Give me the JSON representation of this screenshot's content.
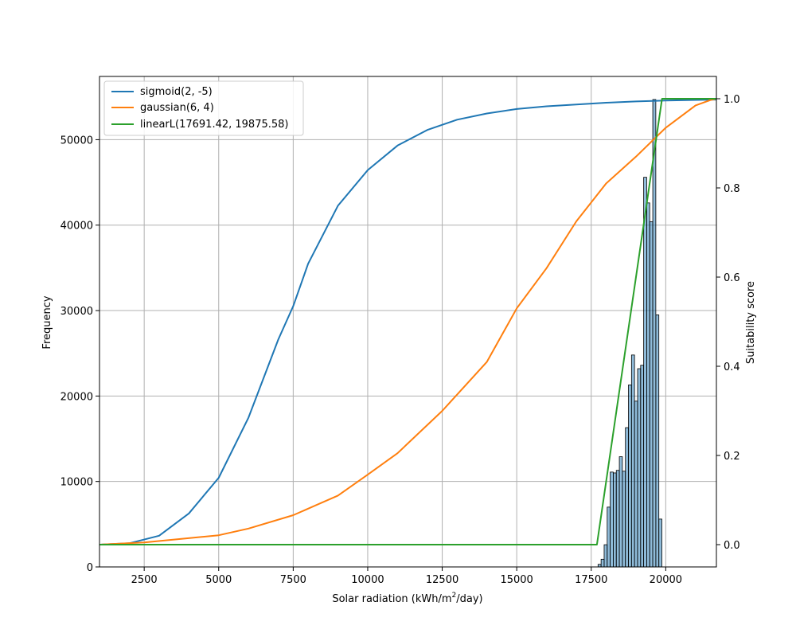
{
  "chart_data": {
    "type": "bar+line",
    "title": "",
    "xlabel": "Solar radiation (kWh/m",
    "xlabel_sup": "2",
    "xlabel_suffix": "/day)",
    "ylabel_left": "Frequency",
    "ylabel_right": "Suitability score",
    "xlim": [
      1000,
      21700
    ],
    "ylim_left": [
      0,
      57400
    ],
    "ylim_right": [
      -0.05,
      1.05
    ],
    "xticks": [
      2500,
      5000,
      7500,
      10000,
      12500,
      15000,
      17500,
      20000
    ],
    "yticks_left": [
      0,
      10000,
      20000,
      30000,
      40000,
      50000
    ],
    "yticks_right": [
      0.0,
      0.2,
      0.4,
      0.6,
      0.8,
      1.0
    ],
    "grid": true,
    "legend_position": "top-left",
    "histogram": {
      "bin_width": 102,
      "bins": [
        {
          "x": 17780,
          "count": 300
        },
        {
          "x": 17882,
          "count": 900
        },
        {
          "x": 17984,
          "count": 2600
        },
        {
          "x": 18086,
          "count": 7000
        },
        {
          "x": 18188,
          "count": 11100
        },
        {
          "x": 18290,
          "count": 11000
        },
        {
          "x": 18392,
          "count": 11300
        },
        {
          "x": 18494,
          "count": 12900
        },
        {
          "x": 18596,
          "count": 11200
        },
        {
          "x": 18698,
          "count": 16300
        },
        {
          "x": 18800,
          "count": 21300
        },
        {
          "x": 18902,
          "count": 24800
        },
        {
          "x": 19004,
          "count": 19400
        },
        {
          "x": 19106,
          "count": 23200
        },
        {
          "x": 19208,
          "count": 23600
        },
        {
          "x": 19310,
          "count": 45600
        },
        {
          "x": 19412,
          "count": 42600
        },
        {
          "x": 19514,
          "count": 40400
        },
        {
          "x": 19616,
          "count": 54700
        },
        {
          "x": 19718,
          "count": 29500
        },
        {
          "x": 19820,
          "count": 5600
        }
      ]
    },
    "series": [
      {
        "name": "sigmoid(2, -5)",
        "color": "#1f77b4",
        "axis": "right",
        "points": [
          [
            1000,
            0.0
          ],
          [
            2000,
            0.003
          ],
          [
            3000,
            0.02
          ],
          [
            4000,
            0.07
          ],
          [
            5000,
            0.15
          ],
          [
            6000,
            0.285
          ],
          [
            7000,
            0.46
          ],
          [
            7500,
            0.535
          ],
          [
            8000,
            0.63
          ],
          [
            9000,
            0.76
          ],
          [
            10000,
            0.84
          ],
          [
            11000,
            0.895
          ],
          [
            12000,
            0.93
          ],
          [
            13000,
            0.953
          ],
          [
            14000,
            0.967
          ],
          [
            15000,
            0.977
          ],
          [
            16000,
            0.983
          ],
          [
            17000,
            0.987
          ],
          [
            18000,
            0.991
          ],
          [
            19000,
            0.994
          ],
          [
            20000,
            0.996
          ],
          [
            21700,
            0.998
          ]
        ]
      },
      {
        "name": "gaussian(6, 4)",
        "color": "#ff7f0e",
        "axis": "right",
        "points": [
          [
            1000,
            0.0
          ],
          [
            2500,
            0.005
          ],
          [
            5000,
            0.021
          ],
          [
            6000,
            0.036
          ],
          [
            7500,
            0.066
          ],
          [
            9000,
            0.11
          ],
          [
            10000,
            0.157
          ],
          [
            11000,
            0.205
          ],
          [
            12500,
            0.3
          ],
          [
            14000,
            0.41
          ],
          [
            15000,
            0.53
          ],
          [
            16000,
            0.62
          ],
          [
            17000,
            0.725
          ],
          [
            18000,
            0.81
          ],
          [
            19000,
            0.87
          ],
          [
            20000,
            0.935
          ],
          [
            20700,
            0.97
          ],
          [
            21000,
            0.985
          ],
          [
            21500,
            0.997
          ],
          [
            21700,
            1.0
          ]
        ]
      },
      {
        "name": "linearL(17691.42, 19875.58)",
        "color": "#2ca02c",
        "axis": "right",
        "points": [
          [
            1000,
            0.0
          ],
          [
            17691.42,
            0.0
          ],
          [
            19875.58,
            1.0
          ],
          [
            21700,
            1.0
          ]
        ]
      }
    ]
  }
}
